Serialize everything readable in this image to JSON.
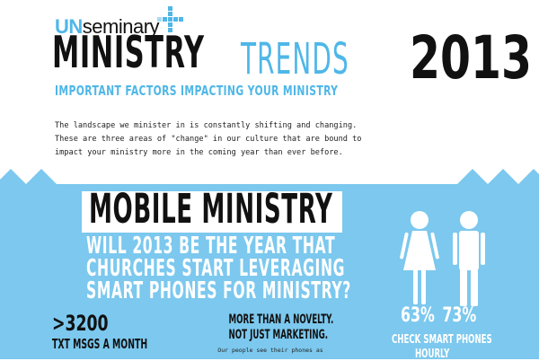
{
  "brand": {
    "prefix": "UN",
    "name": "seminary"
  },
  "header": {
    "title_part1": "MINISTRY",
    "title_part2": "TRENDS",
    "title_year": "2013",
    "subtitle": "IMPORTANT FACTORS IMPACTING YOUR MINISTRY"
  },
  "intro": {
    "lines": [
      "The landscape we minister in is constantly shifting and changing.",
      "These are three areas of \"change\" in our culture that are bound to",
      "impact your ministry more in the coming year than ever before."
    ]
  },
  "section": {
    "title": "MOBILE MINISTRY",
    "question_lines": [
      "WILL 2013 BE THE YEAR THAT",
      "CHURCHES START LEVERAGING",
      "SMART PHONES FOR MINISTRY?"
    ],
    "stat": {
      "value": ">3200",
      "caption": "TXT MSGS A MONTH"
    },
    "novelty": {
      "line1": "MORE THAN A NOVELTY.",
      "line2": "NOT JUST MARKETING.",
      "small": "Our people see their phones as"
    },
    "gender_stats": {
      "female_percent": "63%",
      "male_percent": "73%",
      "caption_line1": "CHECK SMART PHONES",
      "caption_line2": "HOURLY"
    }
  },
  "colors": {
    "accent": "#4fb7e8",
    "band": "#7cc8ee",
    "dark": "#111111",
    "white": "#ffffff"
  },
  "icons": [
    "plus-cross-logo-icon",
    "female-figure-icon",
    "male-figure-icon"
  ]
}
